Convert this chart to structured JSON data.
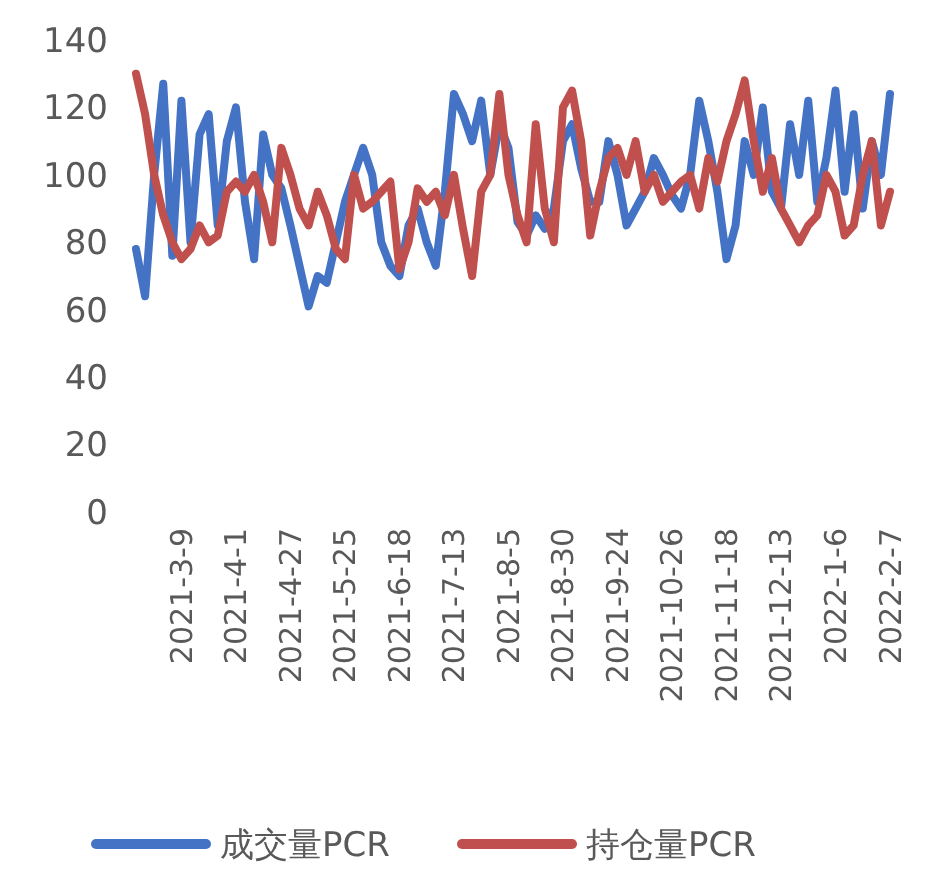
{
  "chart_data": {
    "type": "line",
    "categories": [
      null,
      null,
      null,
      null,
      null,
      "2021-3-9",
      null,
      null,
      null,
      null,
      null,
      "2021-4-1",
      null,
      null,
      null,
      null,
      null,
      "2021-4-27",
      null,
      null,
      null,
      null,
      null,
      "2021-5-25",
      null,
      null,
      null,
      null,
      null,
      "2021-6-18",
      null,
      null,
      null,
      null,
      null,
      "2021-7-13",
      null,
      null,
      null,
      null,
      null,
      "2021-8-5",
      null,
      null,
      null,
      null,
      null,
      "2021-8-30",
      null,
      null,
      null,
      null,
      null,
      "2021-9-24",
      null,
      null,
      null,
      null,
      null,
      "2021-10-26",
      null,
      null,
      null,
      null,
      null,
      "2021-11-18",
      null,
      null,
      null,
      null,
      null,
      "2021-12-13",
      null,
      null,
      null,
      null,
      null,
      "2022-1-6",
      null,
      null,
      null,
      null,
      null,
      "2022-2-7"
    ],
    "series": [
      {
        "name": "成交量PCR",
        "color": "#4472c4",
        "values": [
          78,
          64,
          100,
          127,
          76,
          122,
          80,
          112,
          118,
          85,
          110,
          120,
          92,
          75,
          112,
          100,
          96,
          85,
          73,
          61,
          70,
          68,
          80,
          92,
          100,
          108,
          100,
          80,
          73,
          70,
          85,
          90,
          80,
          73,
          95,
          124,
          118,
          110,
          122,
          100,
          115,
          108,
          86,
          82,
          88,
          84,
          90,
          110,
          115,
          102,
          92,
          92,
          110,
          100,
          85,
          90,
          95,
          105,
          100,
          94,
          90,
          100,
          122,
          110,
          95,
          75,
          85,
          110,
          100,
          120,
          95,
          90,
          115,
          100,
          122,
          92,
          105,
          125,
          95,
          118,
          90,
          110,
          100,
          124
        ]
      },
      {
        "name": "持仓量PCR",
        "color": "#c0504d",
        "values": [
          130,
          118,
          100,
          88,
          80,
          75,
          78,
          85,
          80,
          82,
          95,
          98,
          95,
          100,
          92,
          80,
          108,
          100,
          90,
          85,
          95,
          88,
          78,
          75,
          100,
          90,
          92,
          95,
          98,
          72,
          80,
          96,
          92,
          95,
          88,
          100,
          84,
          70,
          95,
          100,
          124,
          100,
          88,
          80,
          115,
          90,
          80,
          120,
          125,
          110,
          82,
          95,
          105,
          108,
          100,
          110,
          95,
          100,
          92,
          95,
          98,
          100,
          90,
          105,
          98,
          110,
          118,
          128,
          110,
          95,
          105,
          90,
          85,
          80,
          85,
          88,
          100,
          95,
          82,
          85,
          100,
          110,
          85,
          95
        ]
      }
    ],
    "ylim": [
      0,
      140
    ],
    "yticks": [
      0,
      20,
      40,
      60,
      80,
      100,
      120,
      140
    ],
    "legend": "bottom",
    "grid": false
  }
}
